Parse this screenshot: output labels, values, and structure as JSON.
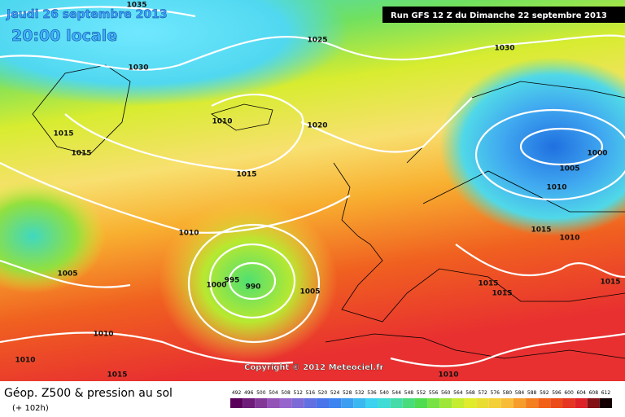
{
  "header": {
    "date": "Jeudi 26 septembre 2013",
    "time": "20:00 locale",
    "run": "Run GFS 12 Z du Dimanche 22 septembre 2013"
  },
  "isobar_labels": [
    "1035",
    "1030",
    "1025",
    "1030",
    "1010",
    "1020",
    "1015",
    "1015",
    "1015",
    "1000",
    "1005",
    "1010",
    "1010",
    "1015",
    "1010",
    "1005",
    "995",
    "990",
    "1000",
    "1005",
    "1015",
    "1015",
    "1015",
    "1010",
    "1010",
    "1015",
    "1010"
  ],
  "copyright": "Copyright © 2012 Meteociel.fr",
  "footer": {
    "title": "Géop. Z500 & pression au sol",
    "lead": "(+ 102h)"
  },
  "legend": {
    "values": [
      492,
      496,
      500,
      504,
      508,
      512,
      516,
      520,
      524,
      528,
      532,
      536,
      540,
      544,
      548,
      552,
      556,
      560,
      564,
      568,
      572,
      576,
      580,
      584,
      588,
      592,
      596,
      600,
      604,
      608,
      612
    ]
  }
}
